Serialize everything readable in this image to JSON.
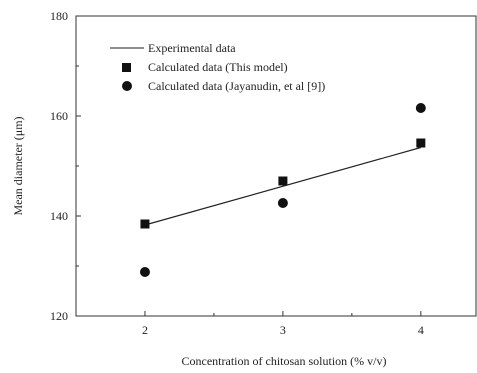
{
  "chart_data": {
    "type": "scatter",
    "xlabel": "Concentration of chitosan solution (% v/v)",
    "ylabel": "Mean diameter (μm)",
    "xlim": [
      1.5,
      4.4
    ],
    "ylim": [
      120,
      180
    ],
    "xticks": [
      2,
      3,
      4
    ],
    "yticks": [
      120,
      140,
      160,
      180
    ],
    "grid": false,
    "legend_position": "top-left",
    "series": [
      {
        "name": "Experimental data",
        "kind": "line",
        "color": "#222222",
        "x": [
          2,
          4
        ],
        "y": [
          138.2,
          153.7
        ]
      },
      {
        "name": "Calculated data (This model)",
        "kind": "square",
        "color": "#111111",
        "x": [
          2,
          3,
          4
        ],
        "y": [
          138.4,
          147.0,
          154.6
        ]
      },
      {
        "name": "Calculated data (Jayanudin, et al [9])",
        "kind": "circle",
        "color": "#111111",
        "x": [
          2,
          3,
          4
        ],
        "y": [
          128.8,
          142.6,
          161.6
        ]
      }
    ]
  }
}
